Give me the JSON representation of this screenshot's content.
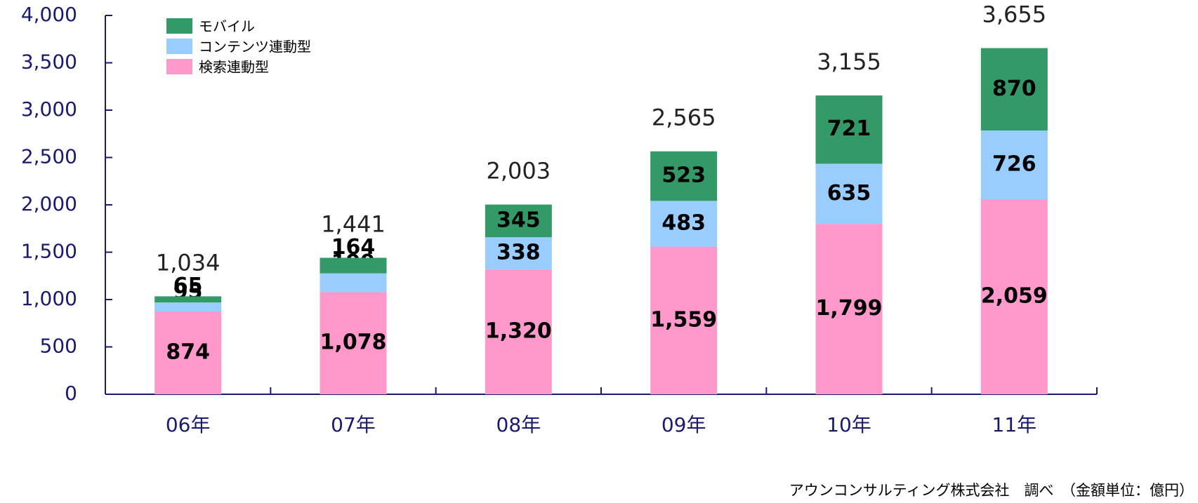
{
  "chart_data": {
    "type": "stacked_bar",
    "categories": [
      "06年",
      "07年",
      "08年",
      "09年",
      "10年",
      "11年"
    ],
    "series": [
      {
        "name": "検索連動型",
        "color": "#ff99cc",
        "values": [
          874,
          1078,
          1320,
          1559,
          1799,
          2059
        ],
        "value_labels": [
          "874",
          "1,078",
          "1,320",
          "1,559",
          "1,799",
          "2,059"
        ]
      },
      {
        "name": "コンテンツ連動型",
        "color": "#99ccff",
        "values": [
          95,
          199,
          338,
          483,
          635,
          726
        ]
      },
      {
        "name": "モバイル",
        "color": "#339966",
        "values": [
          65,
          164,
          345,
          523,
          721,
          870
        ]
      }
    ],
    "totals": [
      1034,
      1441,
      2003,
      2565,
      3155,
      3655
    ],
    "total_labels": [
      "1,034",
      "1,441",
      "2,003",
      "2,565",
      "3,155",
      "3,655"
    ],
    "ylim": [
      0,
      4000
    ],
    "yticks": [
      0,
      500,
      {
        "value": 1000,
        "label": "1,000"
      },
      {
        "value": 1500,
        "label": "1,500"
      },
      {
        "value": 2000,
        "label": "2,000"
      },
      {
        "value": 2500,
        "label": "2,500"
      },
      {
        "value": 3000,
        "label": "3,000"
      },
      {
        "value": 3500,
        "label": "3,500"
      },
      {
        "value": 4000,
        "label": "4,000"
      }
    ],
    "source": "アウンコンサルティング株式会社　調べ　（金額単位：億円）"
  }
}
